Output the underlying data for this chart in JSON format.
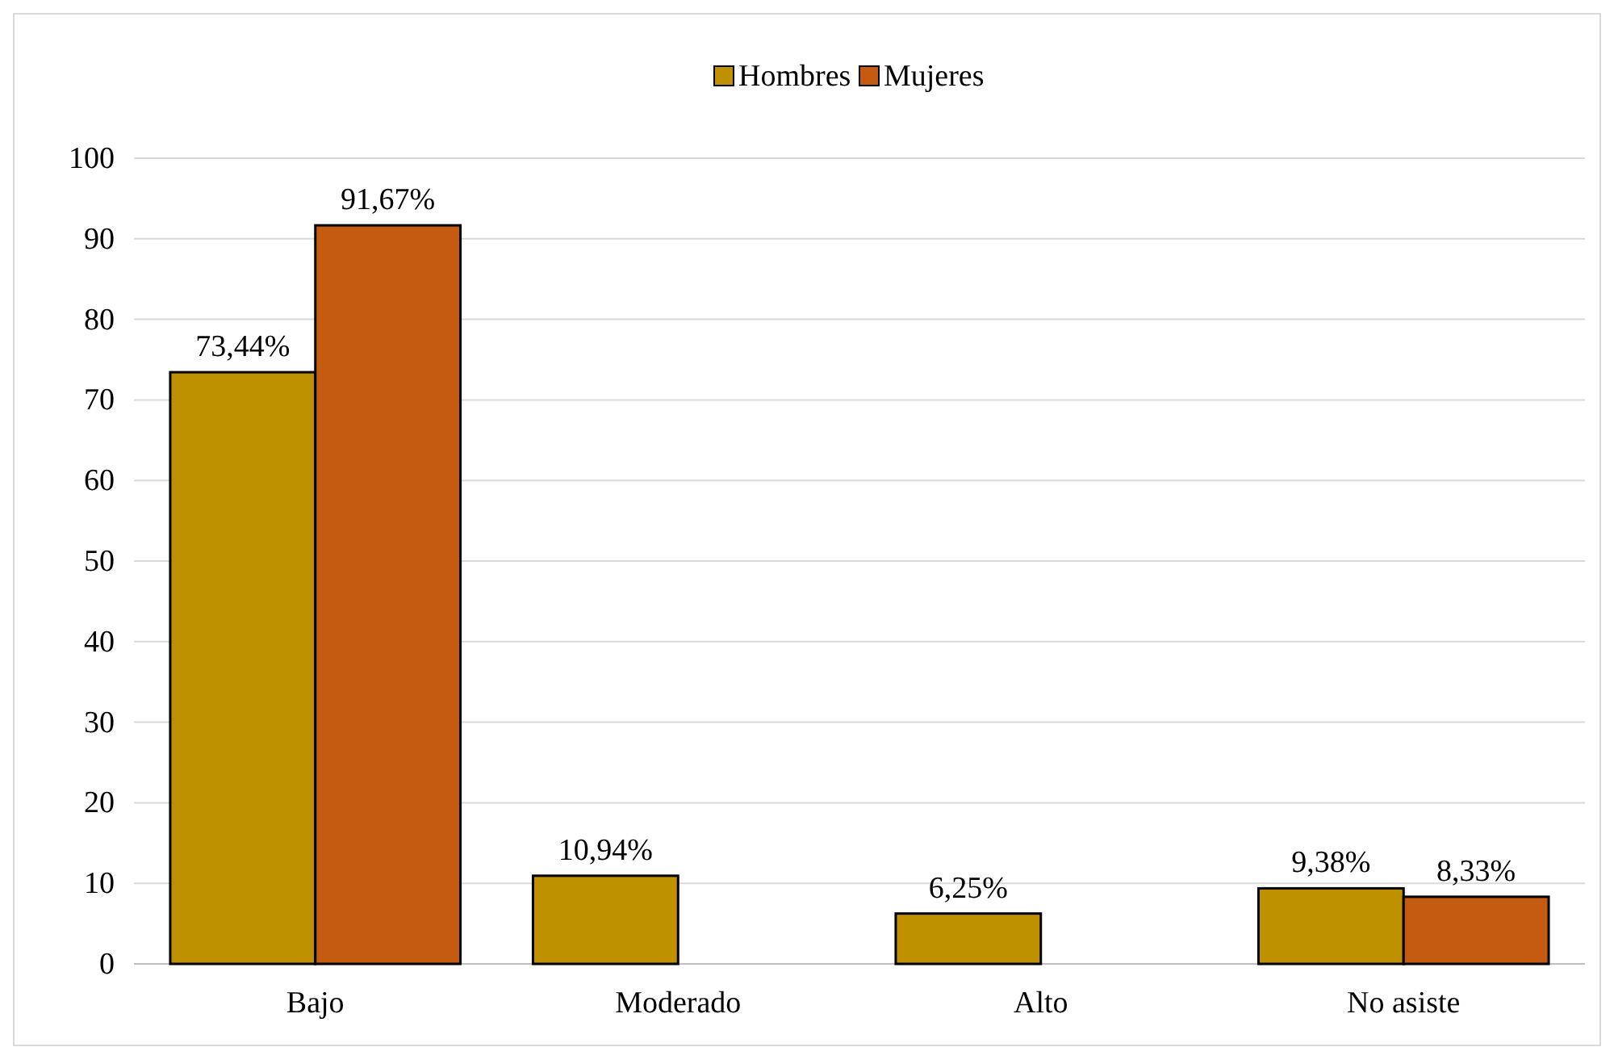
{
  "chart_data": {
    "type": "bar",
    "categories": [
      "Bajo",
      "Moderado",
      "Alto",
      "No asiste"
    ],
    "series": [
      {
        "name": "Hombres",
        "color": "#bf9000",
        "values": [
          73.44,
          10.94,
          6.25,
          9.38
        ],
        "value_labels": [
          "73,44%",
          "10,94%",
          "6,25%",
          "9,38%"
        ]
      },
      {
        "name": "Mujeres",
        "color": "#c55a11",
        "values": [
          91.67,
          null,
          null,
          8.33
        ],
        "value_labels": [
          "91,67%",
          null,
          null,
          "8,33%"
        ]
      }
    ],
    "ylim": [
      0,
      100
    ],
    "yticks": [
      0,
      10,
      20,
      30,
      40,
      50,
      60,
      70,
      80,
      90,
      100
    ],
    "grid": "y",
    "legend": "top"
  }
}
